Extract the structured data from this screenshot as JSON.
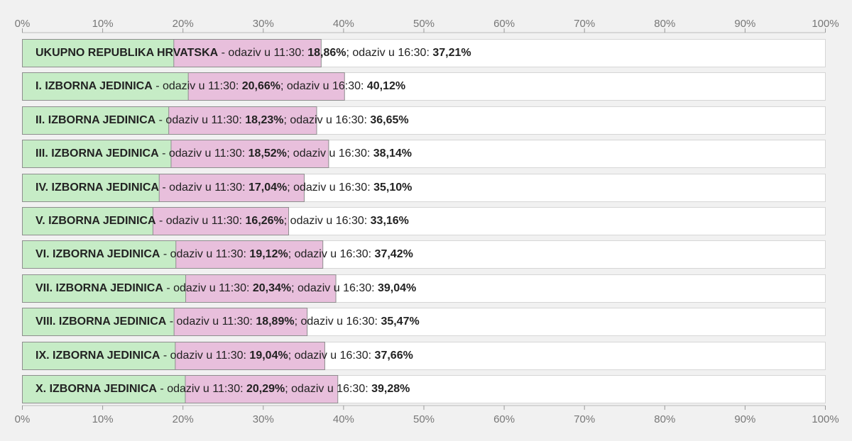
{
  "chart_data": {
    "type": "bar",
    "orientation": "horizontal",
    "overlaid": true,
    "xlim": [
      0,
      100
    ],
    "x_ticks": [
      "0%",
      "10%",
      "20%",
      "30%",
      "40%",
      "50%",
      "60%",
      "70%",
      "80%",
      "90%",
      "100%"
    ],
    "label_parts": {
      "separator": " - ",
      "t1_prefix": "odaziv u 11:30: ",
      "t2_prefix": "; odaziv u 16:30: "
    },
    "categories": [
      "UKUPNO REPUBLIKA HRVATSKA",
      "I. IZBORNA JEDINICA",
      "II. IZBORNA JEDINICA",
      "III. IZBORNA JEDINICA",
      "IV. IZBORNA JEDINICA",
      "V. IZBORNA JEDINICA",
      "VI. IZBORNA JEDINICA",
      "VII. IZBORNA JEDINICA",
      "VIII. IZBORNA JEDINICA",
      "IX. IZBORNA JEDINICA",
      "X. IZBORNA JEDINICA"
    ],
    "series": [
      {
        "color": "#c6ecc6",
        "values": [
          18.86,
          20.66,
          18.23,
          18.52,
          17.04,
          16.26,
          19.12,
          20.34,
          18.89,
          19.04,
          20.29
        ],
        "value_labels": [
          "18,86%",
          "20,66%",
          "18,23%",
          "18,52%",
          "17,04%",
          "16,26%",
          "19,12%",
          "20,34%",
          "18,89%",
          "19,04%",
          "20,29%"
        ]
      },
      {
        "color": "#e8bfdc",
        "values": [
          37.21,
          40.12,
          36.65,
          38.14,
          35.1,
          33.16,
          37.42,
          39.04,
          35.47,
          37.66,
          39.28
        ],
        "value_labels": [
          "37,21%",
          "40,12%",
          "36,65%",
          "38,14%",
          "35,10%",
          "33,16%",
          "37,42%",
          "39,04%",
          "35,47%",
          "37,66%",
          "39,28%"
        ]
      }
    ],
    "grid": false,
    "legend": "none"
  }
}
